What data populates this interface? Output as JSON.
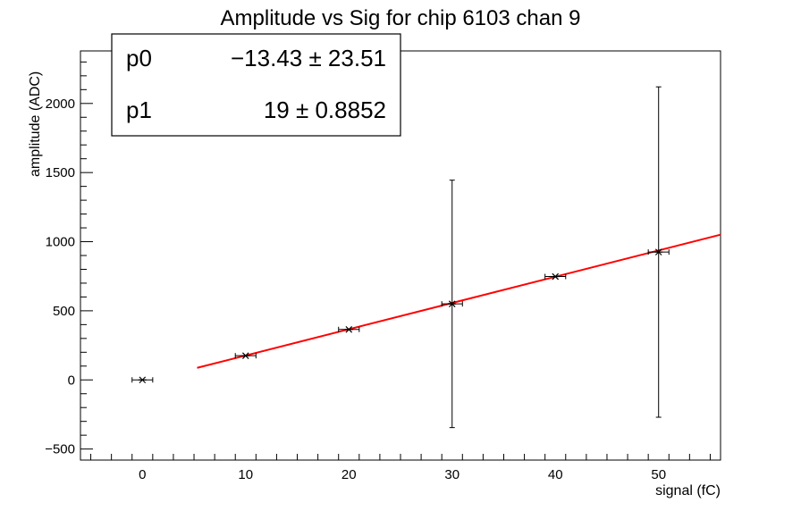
{
  "chart_data": {
    "type": "scatter",
    "title": "Amplitude vs Sig for chip 6103 chan 9",
    "xlabel": "signal (fC)",
    "ylabel": "amplitude (ADC)",
    "xlim": [
      -6,
      56
    ],
    "ylim": [
      -580,
      2380
    ],
    "x_ticks": [
      0,
      10,
      20,
      30,
      40,
      50
    ],
    "y_ticks": [
      -500,
      0,
      500,
      1000,
      1500,
      2000
    ],
    "series": [
      {
        "marker": "star",
        "color": "#000000",
        "points": [
          {
            "x": 0,
            "y": 0,
            "xerr": 1,
            "yerr": 0
          },
          {
            "x": 10,
            "y": 175,
            "xerr": 1,
            "yerr": 0
          },
          {
            "x": 20,
            "y": 365,
            "xerr": 1,
            "yerr": 0
          },
          {
            "x": 30,
            "y": 550,
            "xerr": 1,
            "yerr": 895
          },
          {
            "x": 40,
            "y": 748,
            "xerr": 1,
            "yerr": 0
          },
          {
            "x": 50,
            "y": 925,
            "xerr": 1,
            "yerr": 1195
          }
        ]
      }
    ],
    "fit": {
      "color": "#ff0000",
      "p0": -13.43,
      "p1": 19,
      "x_range": [
        5.3,
        56
      ]
    },
    "stats_box": {
      "rows": [
        {
          "label": "p0",
          "value": "−13.43 ± 23.51"
        },
        {
          "label": "p1",
          "value": "19 ± 0.8852"
        }
      ]
    },
    "grid": false,
    "legend": "none"
  }
}
